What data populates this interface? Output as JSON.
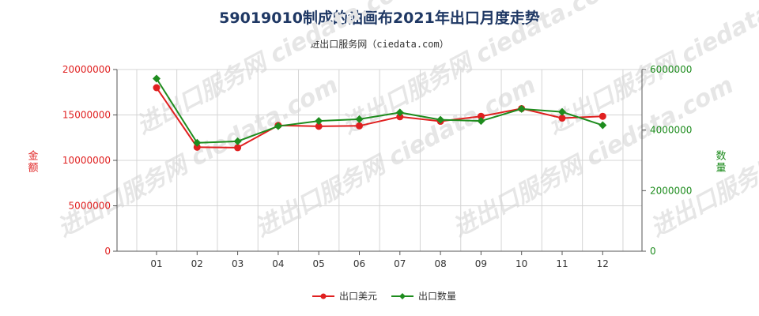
{
  "title": "59019010制成的油画布2021年出口月度走势",
  "subtitle": "进出口服务网（ciedata.com）",
  "watermark": "进出口服务网 ciedata.com",
  "chart_data": {
    "type": "line",
    "categories": [
      "01",
      "02",
      "03",
      "04",
      "05",
      "06",
      "07",
      "08",
      "09",
      "10",
      "11",
      "12"
    ],
    "left_axis": {
      "label": "金额",
      "ylim": [
        0,
        20000000
      ],
      "ticks": [
        "0",
        "5000000",
        "10000000",
        "15000000",
        "20000000"
      ],
      "color": "#e02020"
    },
    "right_axis": {
      "label": "数量",
      "ylim": [
        0,
        6000000
      ],
      "ticks": [
        "0",
        "2000000",
        "4000000",
        "6000000"
      ],
      "color": "#1e8c1e"
    },
    "series": [
      {
        "name": "出口美元",
        "axis": "left",
        "color": "#e02020",
        "marker": "circle",
        "values": [
          18000000,
          11450000,
          11400000,
          13850000,
          13750000,
          13800000,
          14800000,
          14300000,
          14850000,
          15700000,
          14650000,
          14850000
        ]
      },
      {
        "name": "出口数量",
        "axis": "right",
        "color": "#1e8c1e",
        "marker": "diamond",
        "values": [
          5700000,
          3580000,
          3630000,
          4130000,
          4300000,
          4360000,
          4580000,
          4340000,
          4300000,
          4700000,
          4600000,
          4160000
        ]
      }
    ],
    "grid": true,
    "legend_position": "bottom-center"
  }
}
